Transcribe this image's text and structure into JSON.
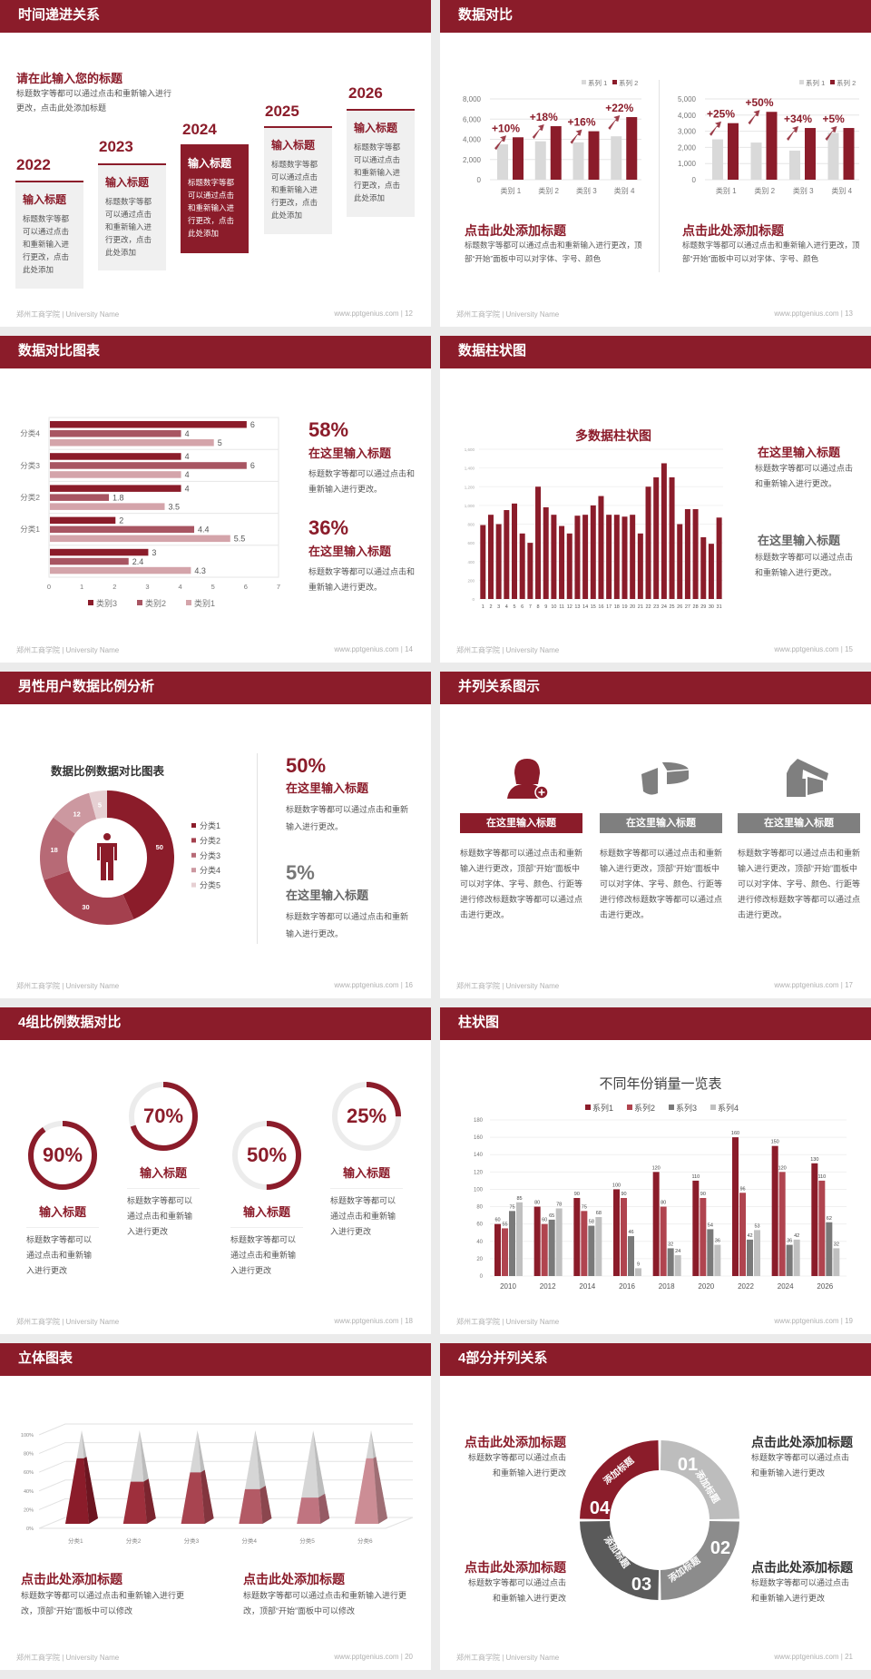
{
  "footer": {
    "left": "郑州工商学院 | University Name",
    "right": "www.pptgenius.com"
  },
  "colors": {
    "brand": "#8b1c2a",
    "gray": "#8c8c8c",
    "light_gray": "#d9d9d9"
  },
  "slides": {
    "s12": {
      "title": "时间递进关系",
      "page": "| 12",
      "subtitle": "请在此输入您的标题",
      "desc": "标题数字等都可以通过点击和重新输入进行更改，点击此处添加标题",
      "cards": [
        {
          "year": "2022",
          "title": "输入标题",
          "body": "标题数字等都可以通过点击和重新输入进行更改，点击此处添加"
        },
        {
          "year": "2023",
          "title": "输入标题",
          "body": "标题数字等都可以通过点击和重新输入进行更改，点击此处添加"
        },
        {
          "year": "2024",
          "title": "输入标题",
          "body": "标题数字等都可以通过点击和重新输入进行更改，点击此处添加"
        },
        {
          "year": "2025",
          "title": "输入标题",
          "body": "标题数字等都可以通过点击和重新输入进行更改，点击此处添加"
        },
        {
          "year": "2026",
          "title": "输入标题",
          "body": "标题数字等都可以通过点击和重新输入进行更改，点击此处添加"
        }
      ]
    },
    "s13": {
      "title": "数据对比",
      "page": "| 13",
      "blocks": [
        {
          "title": "点击此处添加标题",
          "desc": "标题数字等都可以通过点击和重新输入进行更改，顶部“开始”面板中可以对字体、字号、颜色"
        },
        {
          "title": "点击此处添加标题",
          "desc": "标题数字等都可以通过点击和重新输入进行更改，顶部“开始”面板中可以对字体、字号、颜色"
        }
      ]
    },
    "s14": {
      "title": "数据对比图表",
      "page": "| 14",
      "items": [
        {
          "pct": "58%",
          "title": "在这里输入标题",
          "desc": "标题数字等都可以通过点击和重新输入进行更改。"
        },
        {
          "pct": "36%",
          "title": "在这里输入标题",
          "desc": "标题数字等都可以通过点击和重新输入进行更改。"
        }
      ]
    },
    "s15": {
      "title": "数据柱状图",
      "page": "| 15",
      "items": [
        {
          "title": "在这里输入标题",
          "desc": "标题数字等都可以通过点击和重新输入进行更改。"
        },
        {
          "title": "在这里输入标题",
          "desc": "标题数字等都可以通过点击和重新输入进行更改。"
        }
      ]
    },
    "s16": {
      "title": "男性用户数据比例分析",
      "page": "| 16",
      "items": [
        {
          "pct": "50%",
          "title": "在这里输入标题",
          "desc": "标题数字等都可以通过点击和重新输入进行更改。"
        },
        {
          "pct": "5%",
          "title": "在这里输入标题",
          "desc": "标题数字等都可以通过点击和重新输入进行更改。"
        }
      ]
    },
    "s17": {
      "title": "并列关系图示",
      "page": "| 17",
      "cols": [
        {
          "icon": "female-user-add-icon",
          "label": "在这里输入标题",
          "desc": "标题数字等都可以通过点击和重新输入进行更改，顶部“开始”面板中可以对字体、字号、颜色、行距等进行修改标题数字等都可以通过点击进行更改。"
        },
        {
          "icon": "pie-chart-3d-icon",
          "label": "在这里输入标题",
          "desc": "标题数字等都可以通过点击和重新输入进行更改，顶部“开始”面板中可以对字体、字号、颜色、行距等进行修改标题数字等都可以通过点击进行更改。"
        },
        {
          "icon": "shop-building-icon",
          "label": "在这里输入标题",
          "desc": "标题数字等都可以通过点击和重新输入进行更改，顶部“开始”面板中可以对字体、字号、颜色、行距等进行修改标题数字等都可以通过点击进行更改。"
        }
      ]
    },
    "s18": {
      "title": "4组比例数据对比",
      "page": "| 18",
      "rings": [
        {
          "pct": "90%",
          "title": "输入标题",
          "desc": "标题数字等都可以通过点击和重新输入进行更改"
        },
        {
          "pct": "70%",
          "title": "输入标题",
          "desc": "标题数字等都可以通过点击和重新输入进行更改"
        },
        {
          "pct": "50%",
          "title": "输入标题",
          "desc": "标题数字等都可以通过点击和重新输入进行更改"
        },
        {
          "pct": "25%",
          "title": "输入标题",
          "desc": "标题数字等都可以通过点击和重新输入进行更改"
        }
      ]
    },
    "s19": {
      "title": "柱状图",
      "page": "| 19"
    },
    "s20": {
      "title": "立体图表",
      "page": "| 20",
      "blocks": [
        {
          "title": "点击此处添加标题",
          "desc": "标题数字等都可以通过点击和重新输入进行更改，顶部“开始”面板中可以修改"
        },
        {
          "title": "点击此处添加标题",
          "desc": "标题数字等都可以通过点击和重新输入进行更改，顶部“开始”面板中可以修改"
        }
      ]
    },
    "s21": {
      "title": "4部分并列关系",
      "page": "| 21",
      "segments": [
        {
          "num": "01",
          "label": "添加标题"
        },
        {
          "num": "02",
          "label": "添加标题"
        },
        {
          "num": "03",
          "label": "添加标题"
        },
        {
          "num": "04",
          "label": "添加标题"
        }
      ],
      "blocks": [
        {
          "title": "点击此处添加标题",
          "desc1": "标题数字等都可以通过点击",
          "desc2": "和重新输入进行更改"
        },
        {
          "title": "点击此处添加标题",
          "desc1": "标题数字等都可以通过点击",
          "desc2": "和重新输入进行更改"
        },
        {
          "title": "点击此处添加标题",
          "desc1": "标题数字等都可以通过点击",
          "desc2": "和重新输入进行更改"
        },
        {
          "title": "点击此处添加标题",
          "desc1": "标题数字等都可以通过点击",
          "desc2": "和重新输入进行更改"
        }
      ]
    }
  },
  "chart_data": [
    {
      "type": "bar",
      "categories": [
        "类别 1",
        "类别 2",
        "类别 3",
        "类别 4"
      ],
      "ylim": [
        0,
        8000
      ],
      "yticks": [
        "0",
        "2,000",
        "4,000",
        "6,000",
        "8,000"
      ],
      "legend": "top-right",
      "grid": true,
      "series": [
        {
          "name": "系列 1",
          "color": "#d9d9d9",
          "values": [
            3500,
            3800,
            3700,
            4300
          ]
        },
        {
          "name": "系列 2",
          "color": "#8b1c2a",
          "values": [
            4200,
            5300,
            4800,
            6200
          ]
        }
      ],
      "annotations": [
        "+10%",
        "+18%",
        "+16%",
        "+22%"
      ]
    },
    {
      "type": "bar",
      "categories": [
        "类别 1",
        "类别 2",
        "类别 3",
        "类别 4"
      ],
      "ylim": [
        0,
        5000
      ],
      "yticks": [
        "0",
        "1,000",
        "2,000",
        "3,000",
        "4,000",
        "5,000"
      ],
      "legend": "top-right",
      "grid": true,
      "series": [
        {
          "name": "系列 1",
          "color": "#d9d9d9",
          "values": [
            2500,
            2300,
            1800,
            2900
          ]
        },
        {
          "name": "系列 2",
          "color": "#8b1c2a",
          "values": [
            3500,
            4200,
            3200,
            3200
          ]
        }
      ],
      "annotations": [
        "+25%",
        "+50%",
        "+34%",
        "+5%"
      ]
    },
    {
      "type": "bar",
      "orientation": "horizontal",
      "categories": [
        "分类4",
        "分类3",
        "分类2",
        "分类1",
        ""
      ],
      "xlim": [
        0,
        7
      ],
      "xticks": [
        "0",
        "1",
        "2",
        "3",
        "4",
        "5",
        "6",
        "7"
      ],
      "legend": "bottom",
      "series": [
        {
          "name": "类别3",
          "color": "#8b1c2a",
          "values": [
            6,
            4,
            4,
            2,
            3
          ]
        },
        {
          "name": "类别2",
          "color": "#a85562",
          "values": [
            4,
            6,
            1.8,
            4.4,
            2.4
          ]
        },
        {
          "name": "类别1",
          "color": "#d4a4aa",
          "values": [
            5,
            4,
            3.5,
            5.5,
            4.3
          ]
        }
      ]
    },
    {
      "type": "bar",
      "title": "多数据柱状图",
      "categories": [
        "1",
        "2",
        "3",
        "4",
        "5",
        "6",
        "7",
        "8",
        "9",
        "10",
        "11",
        "12",
        "13",
        "14",
        "15",
        "16",
        "17",
        "18",
        "19",
        "20",
        "21",
        "22",
        "23",
        "24",
        "25",
        "26",
        "27",
        "28",
        "29",
        "30",
        "31"
      ],
      "ylim": [
        0,
        1600
      ],
      "yticks": [
        "0",
        "200",
        "400",
        "600",
        "800",
        "1,000",
        "1,200",
        "1,400",
        "1,600"
      ],
      "grid": true,
      "color": "#8b1c2a",
      "values": [
        790,
        900,
        800,
        950,
        1020,
        700,
        600,
        1200,
        980,
        900,
        780,
        700,
        890,
        900,
        1000,
        1100,
        900,
        900,
        880,
        900,
        700,
        1200,
        1300,
        1450,
        1300,
        800,
        960,
        960,
        660,
        590,
        870
      ]
    },
    {
      "type": "pie",
      "subtype": "donut",
      "title": "数据比例数据对比图表",
      "legend": "right",
      "categories": [
        "分类1",
        "分类2",
        "分类3",
        "分类4",
        "分类5"
      ],
      "values": [
        50,
        30,
        18,
        12,
        5
      ],
      "colors": [
        "#8b1c2a",
        "#a4404e",
        "#b76a76",
        "#cc98a0",
        "#e6d0d3"
      ]
    },
    {
      "type": "progress-rings",
      "values": [
        90,
        70,
        50,
        25
      ],
      "unit": "%",
      "color": "#8b1c2a",
      "track": "#ececec"
    },
    {
      "type": "bar",
      "title": "不同年份销量一览表",
      "categories": [
        "2010",
        "2012",
        "2014",
        "2016",
        "2018",
        "2020",
        "2022",
        "2024",
        "2026"
      ],
      "ylim": [
        0,
        180
      ],
      "yticks": [
        "0",
        "20",
        "40",
        "60",
        "80",
        "100",
        "120",
        "140",
        "160",
        "180"
      ],
      "legend": "top",
      "grid": true,
      "series": [
        {
          "name": "系列1",
          "color": "#8b1c2a",
          "values": [
            60,
            80,
            90,
            100,
            120,
            110,
            160,
            150,
            130
          ]
        },
        {
          "name": "系列2",
          "color": "#b0444f",
          "values": [
            55,
            60,
            75,
            90,
            80,
            90,
            96,
            120,
            110
          ]
        },
        {
          "name": "系列3",
          "color": "#7a7a7a",
          "values": [
            75,
            65,
            58,
            46,
            32,
            54,
            42,
            36,
            62
          ]
        },
        {
          "name": "系列4",
          "color": "#c0c0c0",
          "values": [
            85,
            78,
            68,
            9,
            24,
            36,
            53,
            42,
            32
          ]
        }
      ]
    },
    {
      "type": "bar",
      "subtype": "3d-pyramid",
      "categories": [
        "分类1",
        "分类2",
        "分类3",
        "分类4",
        "分类5",
        "分类6"
      ],
      "ylim": [
        0,
        100
      ],
      "yticks": [
        "0%",
        "20%",
        "40%",
        "60%",
        "80%",
        "100%"
      ],
      "values": [
        70,
        45,
        55,
        37,
        28,
        70
      ],
      "colors": [
        "#8b1c2a",
        "#9e2f3c",
        "#a84450",
        "#b35a65",
        "#c07480",
        "#cc8d95"
      ],
      "remainder_color": "#d6d6d6"
    }
  ]
}
